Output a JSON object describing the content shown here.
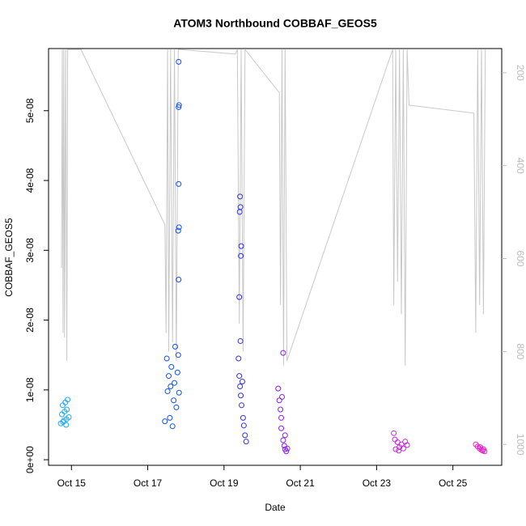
{
  "chart_data": {
    "type": "scatter",
    "title": "ATOM3 Northbound COBBAF_GEOS5",
    "x_label": "Date",
    "y_label": "COBBAF_GEOS5",
    "xlim": [
      14.4,
      26.28
    ],
    "xticks": [
      {
        "value": 15,
        "label": "Oct 15"
      },
      {
        "value": 17,
        "label": "Oct 17"
      },
      {
        "value": 19,
        "label": "Oct 19"
      },
      {
        "value": 21,
        "label": "Oct 21"
      },
      {
        "value": 23,
        "label": "Oct 23"
      },
      {
        "value": 25,
        "label": "Oct 25"
      }
    ],
    "ylim": [
      -8e-10,
      5.89e-08
    ],
    "yticks": [
      {
        "value": 0,
        "label": "0e+00"
      },
      {
        "value": 1e-08,
        "label": "1e-08"
      },
      {
        "value": 2e-08,
        "label": "2e-08"
      },
      {
        "value": 3e-08,
        "label": "3e-08"
      },
      {
        "value": 4e-08,
        "label": "4e-08"
      },
      {
        "value": 5e-08,
        "label": "5e-08"
      }
    ],
    "y2lim": [
      1045,
      148
    ],
    "y2ticks": [
      200,
      400,
      600,
      800,
      1000
    ],
    "y2_color": "#bbbbbb",
    "clusters": [
      {
        "color": "#20a8f0",
        "x": [
          14.72,
          14.75,
          14.77,
          14.8,
          14.82,
          14.84,
          14.86,
          14.88,
          14.9,
          14.93,
          14.78,
          14.87
        ],
        "values": [
          5.2e-09,
          6.5e-09,
          7.8e-09,
          5.6e-09,
          6.9e-09,
          8.2e-09,
          5e-09,
          7.2e-09,
          8.6e-09,
          6.1e-09,
          5.4e-09,
          5.8e-09
        ]
      },
      {
        "color": "#1050f0",
        "x": [
          17.45,
          17.5,
          17.52,
          17.55,
          17.58,
          17.6,
          17.62,
          17.65,
          17.68,
          17.7,
          17.72,
          17.75,
          17.78,
          17.8,
          17.82,
          17.81,
          17.81,
          17.82,
          17.81,
          17.82,
          17.8,
          17.81
        ],
        "values": [
          5.5e-09,
          1.45e-08,
          9.8e-09,
          1.2e-08,
          6e-09,
          1.05e-08,
          1.33e-08,
          4.8e-09,
          8.5e-09,
          1.1e-08,
          1.62e-08,
          7.5e-09,
          1.25e-08,
          1.5e-08,
          9.6e-09,
          5.7e-08,
          5.05e-08,
          5.08e-08,
          3.95e-08,
          3.33e-08,
          3.28e-08,
          2.58e-08
        ]
      },
      {
        "color": "#3030e8",
        "x": [
          19.38,
          19.4,
          19.42,
          19.44,
          19.46,
          19.48,
          19.5,
          19.52,
          19.55,
          19.58,
          19.42,
          19.43,
          19.41,
          19.45,
          19.44,
          19.4,
          19.43
        ],
        "values": [
          1.45e-08,
          1.2e-08,
          1.05e-08,
          9.2e-09,
          7.8e-09,
          1.12e-08,
          6e-09,
          4.9e-09,
          3.5e-09,
          2.6e-09,
          3.77e-08,
          3.62e-08,
          3.55e-08,
          3.06e-08,
          2.92e-08,
          2.33e-08,
          1.7e-08
        ]
      },
      {
        "color": "#8a20f0",
        "x": [
          20.42,
          20.45,
          20.48,
          20.5,
          20.52,
          20.55,
          20.58,
          20.6,
          20.63,
          20.66,
          20.55,
          20.5,
          20.6
        ],
        "values": [
          1.02e-08,
          8.5e-09,
          7.2e-09,
          4.5e-09,
          9e-09,
          2.8e-09,
          2e-09,
          1.5e-09,
          1.2e-09,
          1.6e-09,
          1.53e-08,
          6e-09,
          3.5e-09
        ]
      },
      {
        "color": "#c828e0",
        "x": [
          23.45,
          23.5,
          23.55,
          23.6,
          23.65,
          23.7,
          23.75,
          23.8,
          23.48,
          23.58
        ],
        "values": [
          3.8e-09,
          1.5e-09,
          2.5e-09,
          1.8e-09,
          2.2e-09,
          1.6e-09,
          2.6e-09,
          2.1e-09,
          2.9e-09,
          1.3e-09
        ]
      },
      {
        "color": "#e820c8",
        "x": [
          25.6,
          25.65,
          25.7,
          25.72,
          25.75,
          25.78,
          25.8,
          25.83
        ],
        "values": [
          2.2e-09,
          1.9e-09,
          1.6e-09,
          1.8e-09,
          1.4e-09,
          1.3e-09,
          1.5e-09,
          1.2e-09
        ]
      }
    ],
    "pressure": {
      "color": "#c8c8c8",
      "x": [
        14.74,
        14.76,
        14.78,
        14.8,
        14.82,
        14.85,
        14.88,
        14.9,
        15.25,
        17.45,
        17.48,
        17.52,
        17.55,
        17.6,
        17.65,
        17.7,
        17.75,
        17.8,
        17.85,
        19.3,
        19.35,
        19.4,
        19.45,
        19.5,
        19.55,
        20.45,
        20.48,
        20.52,
        20.56,
        20.6,
        20.65,
        23.42,
        23.45,
        23.5,
        23.55,
        23.6,
        23.65,
        23.7,
        23.75,
        23.8,
        23.85,
        25.55,
        25.6,
        25.65,
        25.7,
        25.75,
        25.8,
        25.85
      ],
      "values": [
        620,
        150,
        760,
        150,
        770,
        150,
        820,
        150,
        150,
        527,
        760,
        150,
        800,
        150,
        780,
        150,
        820,
        150,
        150,
        160,
        150,
        740,
        150,
        800,
        150,
        243,
        700,
        150,
        830,
        150,
        820,
        150,
        700,
        150,
        650,
        150,
        720,
        150,
        830,
        150,
        270,
        287,
        760,
        150,
        700,
        150,
        720,
        150
      ]
    }
  }
}
